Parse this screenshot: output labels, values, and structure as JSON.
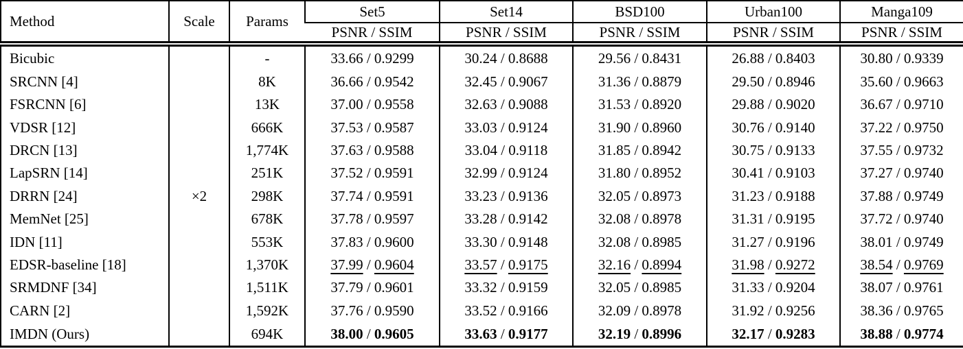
{
  "table": {
    "headers": {
      "method": "Method",
      "scale": "Scale",
      "params": "Params"
    },
    "datasets": [
      "Set5",
      "Set14",
      "BSD100",
      "Urban100",
      "Manga109"
    ],
    "metric_label": "PSNR / SSIM",
    "scale_label": "×2",
    "separator": " / ",
    "rows": [
      {
        "method": "Bicubic",
        "params": "-",
        "emphasis": "none",
        "results": [
          [
            "33.66",
            "0.9299"
          ],
          [
            "30.24",
            "0.8688"
          ],
          [
            "29.56",
            "0.8431"
          ],
          [
            "26.88",
            "0.8403"
          ],
          [
            "30.80",
            "0.9339"
          ]
        ]
      },
      {
        "method": "SRCNN [4]",
        "params": "8K",
        "emphasis": "none",
        "results": [
          [
            "36.66",
            "0.9542"
          ],
          [
            "32.45",
            "0.9067"
          ],
          [
            "31.36",
            "0.8879"
          ],
          [
            "29.50",
            "0.8946"
          ],
          [
            "35.60",
            "0.9663"
          ]
        ]
      },
      {
        "method": "FSRCNN [6]",
        "params": "13K",
        "emphasis": "none",
        "results": [
          [
            "37.00",
            "0.9558"
          ],
          [
            "32.63",
            "0.9088"
          ],
          [
            "31.53",
            "0.8920"
          ],
          [
            "29.88",
            "0.9020"
          ],
          [
            "36.67",
            "0.9710"
          ]
        ]
      },
      {
        "method": "VDSR [12]",
        "params": "666K",
        "emphasis": "none",
        "results": [
          [
            "37.53",
            "0.9587"
          ],
          [
            "33.03",
            "0.9124"
          ],
          [
            "31.90",
            "0.8960"
          ],
          [
            "30.76",
            "0.9140"
          ],
          [
            "37.22",
            "0.9750"
          ]
        ]
      },
      {
        "method": "DRCN [13]",
        "params": "1,774K",
        "emphasis": "none",
        "results": [
          [
            "37.63",
            "0.9588"
          ],
          [
            "33.04",
            "0.9118"
          ],
          [
            "31.85",
            "0.8942"
          ],
          [
            "30.75",
            "0.9133"
          ],
          [
            "37.55",
            "0.9732"
          ]
        ]
      },
      {
        "method": "LapSRN [14]",
        "params": "251K",
        "emphasis": "none",
        "results": [
          [
            "37.52",
            "0.9591"
          ],
          [
            "32.99",
            "0.9124"
          ],
          [
            "31.80",
            "0.8952"
          ],
          [
            "30.41",
            "0.9103"
          ],
          [
            "37.27",
            "0.9740"
          ]
        ]
      },
      {
        "method": "DRRN [24]",
        "params": "298K",
        "emphasis": "none",
        "results": [
          [
            "37.74",
            "0.9591"
          ],
          [
            "33.23",
            "0.9136"
          ],
          [
            "32.05",
            "0.8973"
          ],
          [
            "31.23",
            "0.9188"
          ],
          [
            "37.88",
            "0.9749"
          ]
        ]
      },
      {
        "method": "MemNet [25]",
        "params": "678K",
        "emphasis": "none",
        "results": [
          [
            "37.78",
            "0.9597"
          ],
          [
            "33.28",
            "0.9142"
          ],
          [
            "32.08",
            "0.8978"
          ],
          [
            "31.31",
            "0.9195"
          ],
          [
            "37.72",
            "0.9740"
          ]
        ]
      },
      {
        "method": "IDN [11]",
        "params": "553K",
        "emphasis": "none",
        "results": [
          [
            "37.83",
            "0.9600"
          ],
          [
            "33.30",
            "0.9148"
          ],
          [
            "32.08",
            "0.8985"
          ],
          [
            "31.27",
            "0.9196"
          ],
          [
            "38.01",
            "0.9749"
          ]
        ]
      },
      {
        "method": "EDSR-baseline [18]",
        "params": "1,370K",
        "emphasis": "underline",
        "results": [
          [
            "37.99",
            "0.9604"
          ],
          [
            "33.57",
            "0.9175"
          ],
          [
            "32.16",
            "0.8994"
          ],
          [
            "31.98",
            "0.9272"
          ],
          [
            "38.54",
            "0.9769"
          ]
        ]
      },
      {
        "method": "SRMDNF [34]",
        "params": "1,511K",
        "emphasis": "none",
        "results": [
          [
            "37.79",
            "0.9601"
          ],
          [
            "33.32",
            "0.9159"
          ],
          [
            "32.05",
            "0.8985"
          ],
          [
            "31.33",
            "0.9204"
          ],
          [
            "38.07",
            "0.9761"
          ]
        ]
      },
      {
        "method": "CARN [2]",
        "params": "1,592K",
        "emphasis": "none",
        "results": [
          [
            "37.76",
            "0.9590"
          ],
          [
            "33.52",
            "0.9166"
          ],
          [
            "32.09",
            "0.8978"
          ],
          [
            "31.92",
            "0.9256"
          ],
          [
            "38.36",
            "0.9765"
          ]
        ]
      },
      {
        "method": "IMDN (Ours)",
        "params": "694K",
        "emphasis": "bold",
        "results": [
          [
            "38.00",
            "0.9605"
          ],
          [
            "33.63",
            "0.9177"
          ],
          [
            "32.19",
            "0.8996"
          ],
          [
            "32.17",
            "0.9283"
          ],
          [
            "38.88",
            "0.9774"
          ]
        ]
      }
    ]
  }
}
